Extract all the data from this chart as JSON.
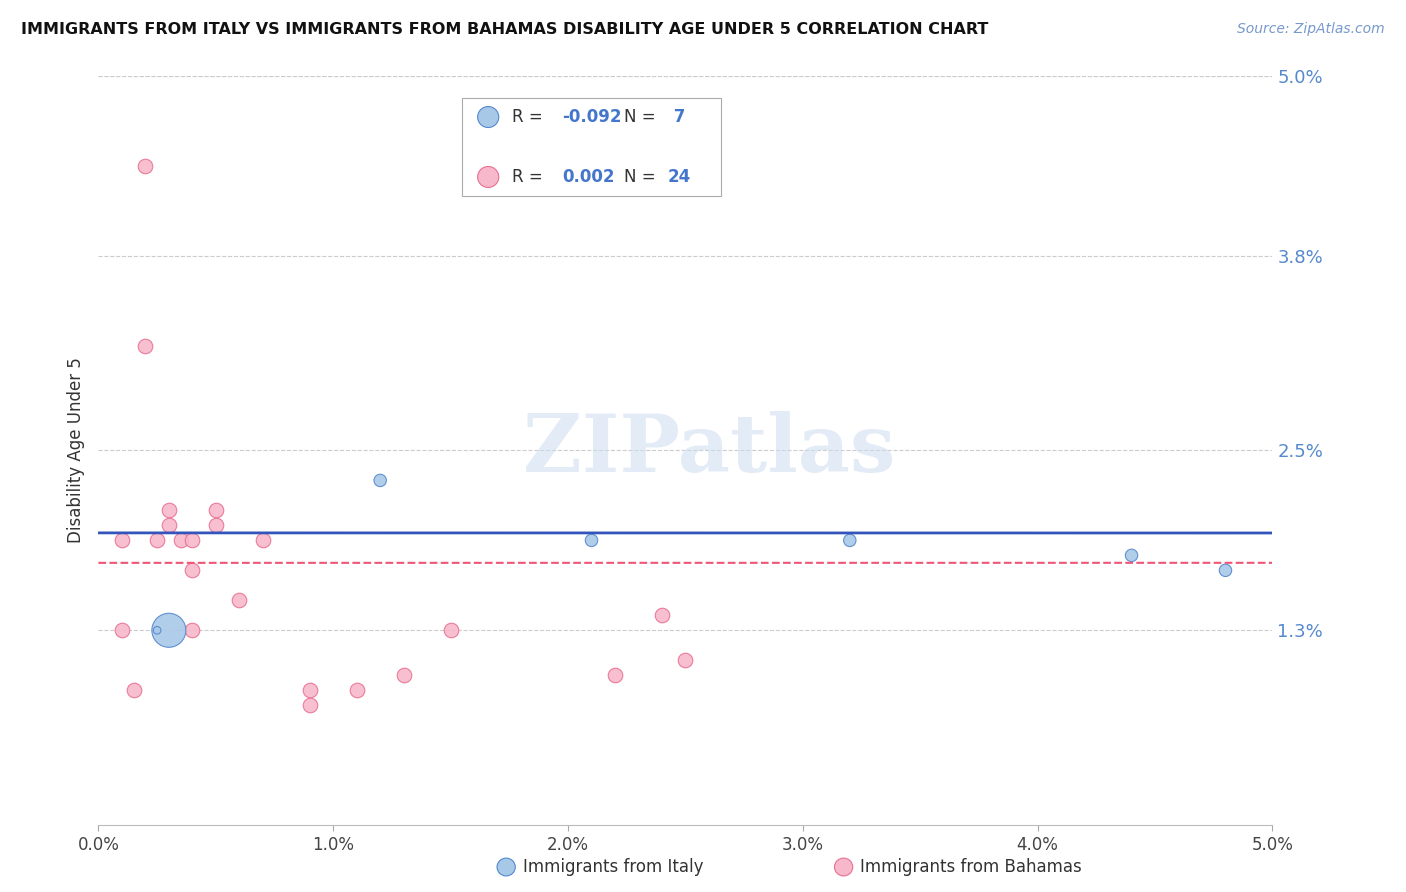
{
  "title": "IMMIGRANTS FROM ITALY VS IMMIGRANTS FROM BAHAMAS DISABILITY AGE UNDER 5 CORRELATION CHART",
  "source": "Source: ZipAtlas.com",
  "ylabel": "Disability Age Under 5",
  "xlim": [
    0.0,
    0.05
  ],
  "ylim": [
    0.0,
    0.05
  ],
  "yticks": [
    0.013,
    0.025,
    0.038,
    0.05
  ],
  "ytick_labels": [
    "1.3%",
    "2.5%",
    "3.8%",
    "5.0%"
  ],
  "xticks": [
    0.0,
    0.01,
    0.02,
    0.03,
    0.04,
    0.05
  ],
  "xtick_labels": [
    "0.0%",
    "1.0%",
    "2.0%",
    "3.0%",
    "4.0%",
    "5.0%"
  ],
  "italy_color": "#a8c8e8",
  "italy_edge_color": "#5588cc",
  "bahamas_color": "#f8b8cc",
  "bahamas_edge_color": "#e87090",
  "italy_R": -0.092,
  "italy_N": 7,
  "bahamas_R": 0.002,
  "bahamas_N": 24,
  "italy_x": [
    0.003,
    0.0025,
    0.012,
    0.021,
    0.032,
    0.044,
    0.048
  ],
  "italy_y": [
    0.013,
    0.013,
    0.023,
    0.019,
    0.019,
    0.018,
    0.017
  ],
  "italy_size": [
    600,
    30,
    80,
    80,
    80,
    80,
    80
  ],
  "bahamas_x": [
    0.001,
    0.001,
    0.0015,
    0.002,
    0.002,
    0.0025,
    0.003,
    0.003,
    0.0035,
    0.004,
    0.004,
    0.004,
    0.005,
    0.005,
    0.006,
    0.007,
    0.009,
    0.009,
    0.011,
    0.013,
    0.015,
    0.022,
    0.024,
    0.025
  ],
  "bahamas_y": [
    0.019,
    0.013,
    0.009,
    0.044,
    0.032,
    0.019,
    0.02,
    0.021,
    0.019,
    0.019,
    0.017,
    0.013,
    0.02,
    0.021,
    0.015,
    0.019,
    0.009,
    0.008,
    0.009,
    0.01,
    0.013,
    0.01,
    0.014,
    0.011
  ],
  "italy_line_color": "#3355bb",
  "bahamas_line_color": "#ee5577",
  "italy_line_intercept": 0.0195,
  "italy_line_slope": -0.00015,
  "bahamas_line_intercept": 0.0175,
  "bahamas_line_slope": 5e-05,
  "watermark_text": "ZIPatlas",
  "background_color": "#ffffff",
  "grid_color": "#cccccc",
  "legend_R1": "R = ",
  "legend_V1": "-0.092",
  "legend_N1_label": "N = ",
  "legend_N1": " 7",
  "legend_R2": "R =  ",
  "legend_V2": "0.002",
  "legend_N2_label": "N = ",
  "legend_N2": "24"
}
